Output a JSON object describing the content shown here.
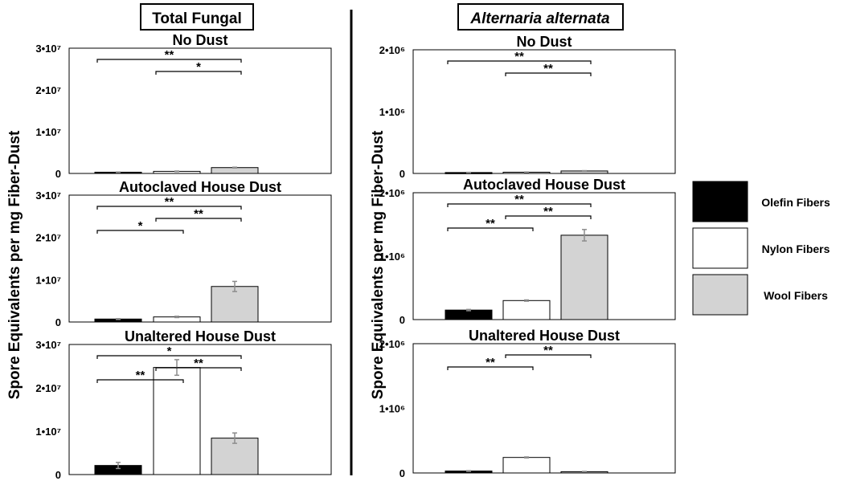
{
  "chart_data": [
    {
      "type": "bar",
      "group_title": "Total Fungal",
      "title": "No Dust",
      "ylabel": "Spore Equivalents per mg Fiber-Dust",
      "ylim": [
        0,
        30000000
      ],
      "ticks": [
        {
          "v": 0,
          "label": "0"
        },
        {
          "v": 10000000,
          "label": "1•10⁷"
        },
        {
          "v": 20000000,
          "label": "2•10⁷"
        },
        {
          "v": 30000000,
          "label": "3•10⁷"
        }
      ],
      "categories": [
        "Olefin Fibers",
        "Nylon Fibers",
        "Wool Fibers"
      ],
      "values": [
        300000,
        500000,
        1400000
      ],
      "errors": [
        50000,
        80000,
        100000
      ],
      "significance": [
        {
          "from": 0,
          "to": 2,
          "label": "**"
        },
        {
          "from": 1,
          "to": 2,
          "label": "*"
        }
      ]
    },
    {
      "type": "bar",
      "group_title": "Total Fungal",
      "title": "Autoclaved House Dust",
      "ylim": [
        0,
        30000000
      ],
      "ticks": [
        {
          "v": 0,
          "label": "0"
        },
        {
          "v": 10000000,
          "label": "1•10⁷"
        },
        {
          "v": 20000000,
          "label": "2•10⁷"
        },
        {
          "v": 30000000,
          "label": "3•10⁷"
        }
      ],
      "categories": [
        "Olefin Fibers",
        "Nylon Fibers",
        "Wool Fibers"
      ],
      "values": [
        700000,
        1200000,
        8400000
      ],
      "errors": [
        100000,
        150000,
        1200000
      ],
      "significance": [
        {
          "from": 0,
          "to": 2,
          "label": "**"
        },
        {
          "from": 1,
          "to": 2,
          "label": "**"
        },
        {
          "from": 0,
          "to": 1,
          "label": "*"
        }
      ]
    },
    {
      "type": "bar",
      "group_title": "Total Fungal",
      "title": "Unaltered House Dust",
      "ylim": [
        0,
        30000000
      ],
      "ticks": [
        {
          "v": 0,
          "label": "0"
        },
        {
          "v": 10000000,
          "label": "1•10⁷"
        },
        {
          "v": 20000000,
          "label": "2•10⁷"
        },
        {
          "v": 30000000,
          "label": "3•10⁷"
        }
      ],
      "categories": [
        "Olefin Fibers",
        "Nylon Fibers",
        "Wool Fibers"
      ],
      "values": [
        2100000,
        24700000,
        8400000
      ],
      "errors": [
        700000,
        1800000,
        1200000
      ],
      "significance": [
        {
          "from": 0,
          "to": 2,
          "label": "*"
        },
        {
          "from": 1,
          "to": 2,
          "label": "**"
        },
        {
          "from": 0,
          "to": 1,
          "label": "**"
        }
      ]
    },
    {
      "type": "bar",
      "group_title": "Alternaria alternata",
      "title": "No Dust",
      "ylim": [
        0,
        2000000
      ],
      "ticks": [
        {
          "v": 0,
          "label": "0"
        },
        {
          "v": 1000000,
          "label": "1•10⁶"
        },
        {
          "v": 2000000,
          "label": "2•10⁶"
        }
      ],
      "categories": [
        "Olefin Fibers",
        "Nylon Fibers",
        "Wool Fibers"
      ],
      "values": [
        15000,
        20000,
        40000
      ],
      "errors": [
        3000,
        4000,
        5000
      ],
      "significance": [
        {
          "from": 0,
          "to": 2,
          "label": "**"
        },
        {
          "from": 1,
          "to": 2,
          "label": "**"
        }
      ]
    },
    {
      "type": "bar",
      "group_title": "Alternaria alternata",
      "title": "Autoclaved House Dust",
      "ylim": [
        0,
        2000000
      ],
      "ticks": [
        {
          "v": 0,
          "label": "0"
        },
        {
          "v": 1000000,
          "label": "1•10⁶"
        },
        {
          "v": 2000000,
          "label": "2•10⁶"
        }
      ],
      "categories": [
        "Olefin Fibers",
        "Nylon Fibers",
        "Wool Fibers"
      ],
      "values": [
        150000,
        300000,
        1330000
      ],
      "errors": [
        10000,
        10000,
        90000
      ],
      "significance": [
        {
          "from": 0,
          "to": 2,
          "label": "**"
        },
        {
          "from": 1,
          "to": 2,
          "label": "**"
        },
        {
          "from": 0,
          "to": 1,
          "label": "**"
        }
      ]
    },
    {
      "type": "bar",
      "group_title": "Alternaria alternata",
      "title": "Unaltered House Dust",
      "ylim": [
        0,
        2000000
      ],
      "ticks": [
        {
          "v": 0,
          "label": "0"
        },
        {
          "v": 1000000,
          "label": "1•10⁶"
        },
        {
          "v": 2000000,
          "label": "2•10⁶"
        }
      ],
      "categories": [
        "Olefin Fibers",
        "Nylon Fibers",
        "Wool Fibers"
      ],
      "values": [
        30000,
        240000,
        20000
      ],
      "errors": [
        5000,
        8000,
        4000
      ],
      "significance": [
        {
          "from": 1,
          "to": 2,
          "label": "**"
        },
        {
          "from": 0,
          "to": 1,
          "label": "**"
        }
      ]
    }
  ],
  "group_titles": [
    "Total Fungal",
    "Alternaria alternata"
  ],
  "ylabel": "Spore Equivalents per mg Fiber-Dust",
  "legend": [
    {
      "label": "Olefin Fibers",
      "color": "#000000"
    },
    {
      "label": "Nylon Fibers",
      "color": "#ffffff"
    },
    {
      "label": "Wool Fibers",
      "color": "#d3d3d3"
    }
  ],
  "error_bar_color": "#8c8c8c"
}
